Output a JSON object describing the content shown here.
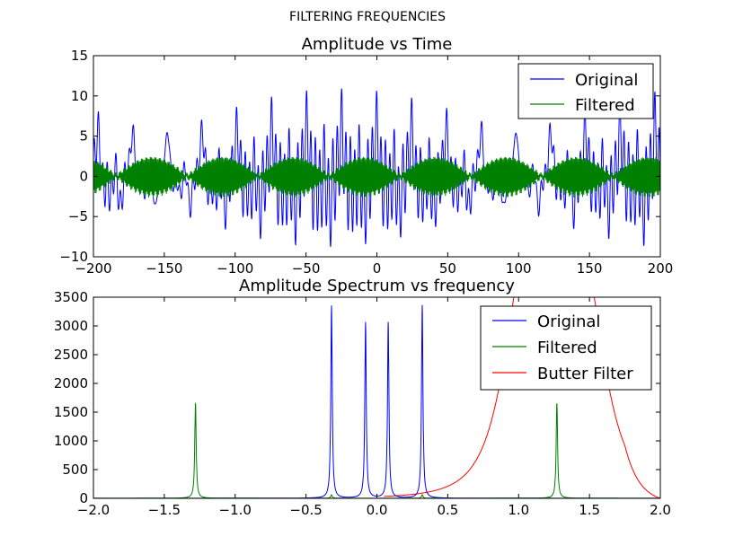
{
  "suptitle": "FILTERING FREQUENCIES",
  "chart_data": [
    {
      "type": "line",
      "title": "Amplitude vs Time",
      "xlabel": "",
      "ylabel": "",
      "xlim": [
        -200,
        200
      ],
      "ylim": [
        -10,
        15
      ],
      "xticks": [
        "−200",
        "−150",
        "−100",
        "−50",
        "0",
        "50",
        "100",
        "150",
        "200"
      ],
      "yticks": [
        "−10",
        "−5",
        "0",
        "5",
        "10",
        "15"
      ],
      "grid": false,
      "legend_position": "upper-right",
      "series": [
        {
          "name": "Original",
          "color": "#0000ff",
          "description": "sum of sinusoids at frequencies 0.08 and 0.32 (plus mirrored), peaks near 11 and troughs near -9",
          "period": 24.6,
          "peak": 11.3,
          "trough": -9.2
        },
        {
          "name": "Filtered",
          "color": "#008000",
          "description": "dense oscillation around 0, amplitude about 2.5",
          "amplitude": 2.5
        }
      ]
    },
    {
      "type": "line",
      "title": "Amplitude Spectrum vs frequency",
      "xlabel": "",
      "ylabel": "",
      "xlim": [
        -2.0,
        2.0
      ],
      "ylim": [
        0,
        3500
      ],
      "xticks": [
        "−2.0",
        "−1.5",
        "−1.0",
        "−0.5",
        "0.0",
        "0.5",
        "1.0",
        "1.5",
        "2.0"
      ],
      "yticks": [
        "0",
        "500",
        "1000",
        "1500",
        "2000",
        "2500",
        "3000",
        "3500"
      ],
      "grid": false,
      "legend_position": "upper-right",
      "series": [
        {
          "name": "Original",
          "color": "#0000ff",
          "peaks": [
            {
              "x": -0.32,
              "y": 3350
            },
            {
              "x": -0.08,
              "y": 3060
            },
            {
              "x": 0.08,
              "y": 3060
            },
            {
              "x": 0.32,
              "y": 3360
            }
          ]
        },
        {
          "name": "Filtered",
          "color": "#008000",
          "peaks": [
            {
              "x": -1.28,
              "y": 1660
            },
            {
              "x": 1.27,
              "y": 1660
            },
            {
              "x": -0.32,
              "y": 60
            },
            {
              "x": 0.32,
              "y": 60
            }
          ]
        },
        {
          "name": "Butter Filter",
          "color": "#ff0000",
          "description": "band-pass response centred near 1.25, rising from 0 near 0.2 to above 3500, falling to 0 at 2.0",
          "center": 1.25,
          "peak_above": 3500
        }
      ]
    }
  ]
}
